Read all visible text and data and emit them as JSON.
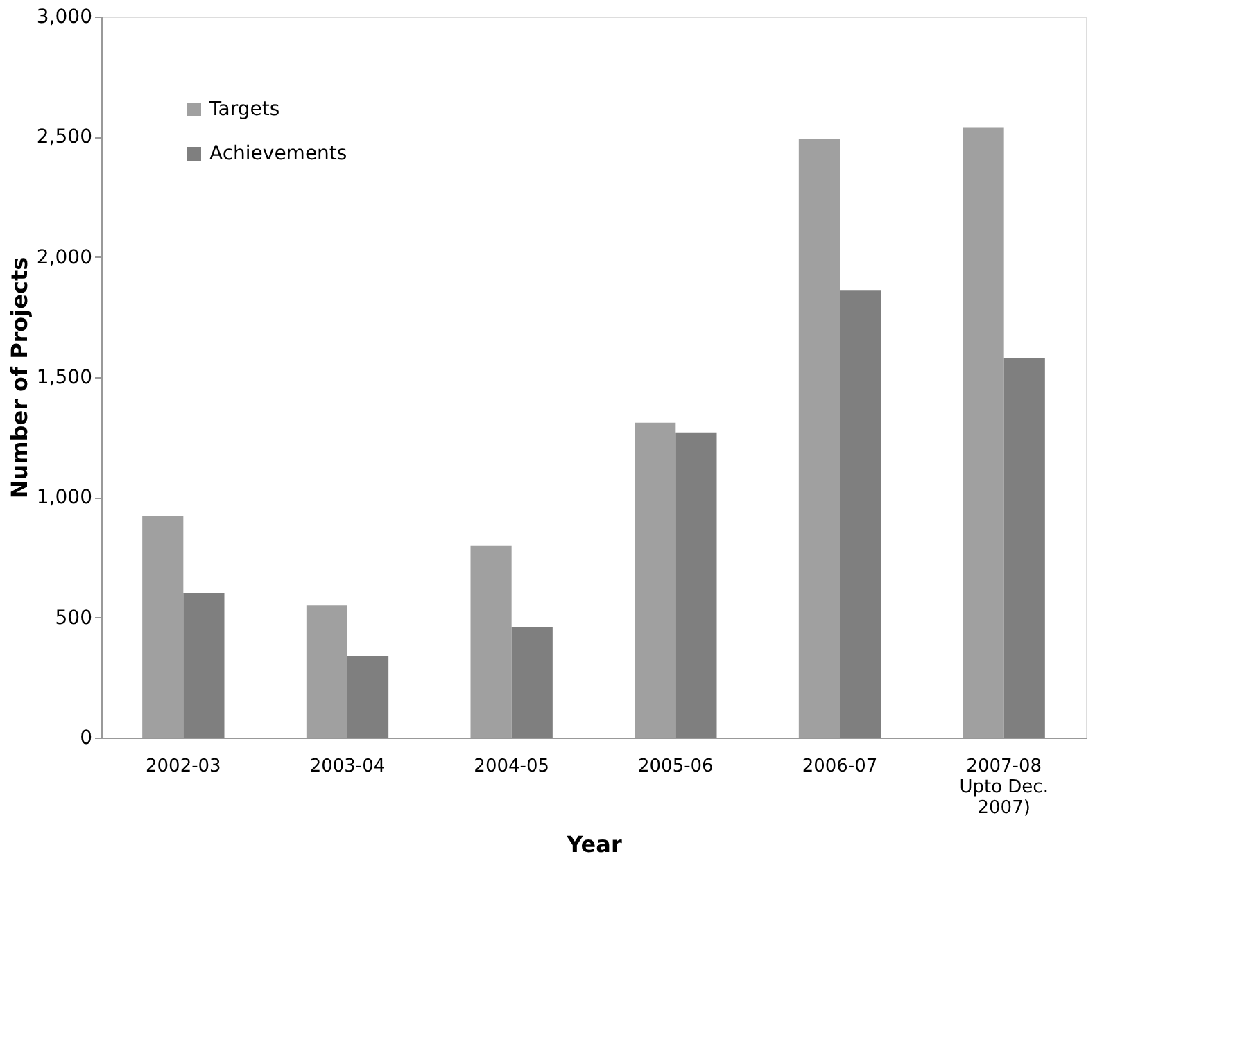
{
  "chart_data": {
    "type": "bar",
    "xlabel": "Year",
    "ylabel": "Number of Projects",
    "categories": [
      "2002-03",
      "2003-04",
      "2004-05",
      "2005-06",
      "2006-07",
      "2007-08\nUpto Dec.\n2007)"
    ],
    "series": [
      {
        "name": "Targets",
        "color": "#a0a0a0",
        "values": [
          920,
          550,
          800,
          1310,
          2490,
          2540
        ]
      },
      {
        "name": "Achievements",
        "color": "#7f7f7f",
        "values": [
          600,
          340,
          460,
          1270,
          1860,
          1580
        ]
      }
    ],
    "ylim": [
      0,
      3000
    ],
    "yticks": [
      0,
      500,
      {
        "value": 1000,
        "label": "1,000"
      },
      {
        "value": 1500,
        "label": "1,500"
      },
      {
        "value": 2000,
        "label": "2,000"
      },
      {
        "value": 2500,
        "label": "2,500"
      },
      {
        "value": 3000,
        "label": "3,000"
      }
    ],
    "grid": false,
    "legend": "top left"
  }
}
